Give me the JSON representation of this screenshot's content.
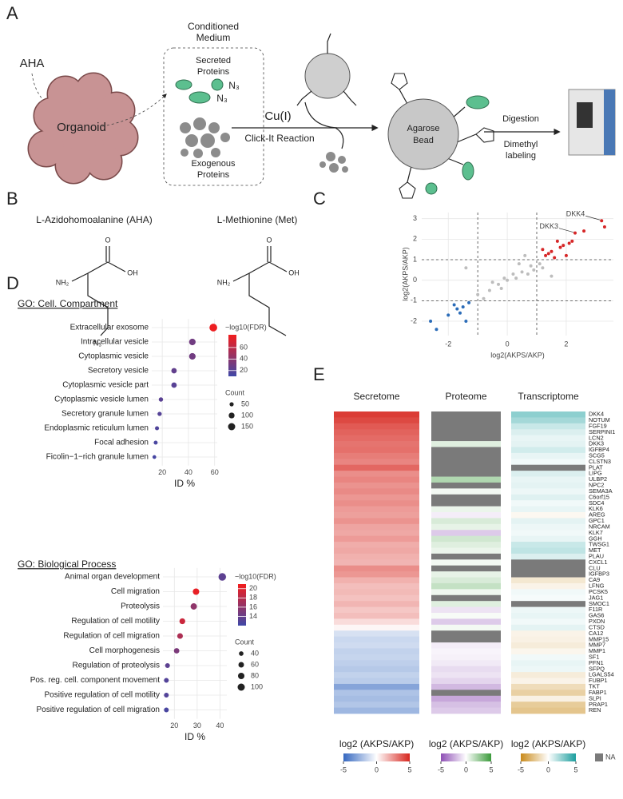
{
  "figure": {
    "panel_labels": [
      "A",
      "B",
      "C",
      "D",
      "E"
    ],
    "workflow": {
      "aha": "AHA",
      "organoid": "Organoid",
      "conditioned_medium": [
        "Conditioned",
        "Medium"
      ],
      "secreted_proteins": [
        "Secreted",
        "Proteins"
      ],
      "n3": [
        "N₃",
        "N₃"
      ],
      "exogenous_proteins": [
        "Exogenous",
        "Proteins"
      ],
      "catalyst": "Cu(I)",
      "reaction": "Click-It Reaction",
      "bead": [
        "Agarose",
        "Bead"
      ],
      "digestion": "Digestion",
      "labeling": [
        "Dimethyl",
        "labeling"
      ]
    },
    "structures": {
      "aha": {
        "name": "L-Azidohomoalanine (AHA)",
        "amine": "NH₂",
        "hydroxyl": "OH",
        "oxygen": "O",
        "azide": "N₃"
      },
      "met": {
        "name": "L-Methionine (Met)",
        "amine": "NH₂",
        "hydroxyl": "OH",
        "oxygen": "O"
      }
    }
  },
  "chart_data": [
    {
      "type": "scatter",
      "xlabel": "log2(AKPS/AKP)",
      "ylabel": "log2(AKPS/AKP)",
      "xlim": [
        -2.9,
        3.6
      ],
      "ylim": [
        -2.7,
        3.3
      ],
      "xticks": [
        -2,
        0,
        2
      ],
      "yticks": [
        -2,
        -1,
        0,
        1,
        2,
        3
      ],
      "grid": true,
      "vlines": [
        -1,
        1
      ],
      "hlines": [
        -1,
        1
      ],
      "series": [
        {
          "color": "#d62728",
          "x": [
            3.2,
            2.3,
            3.3,
            2.6,
            2.1,
            1.9,
            1.8,
            2.2,
            1.5,
            1.3,
            1.6,
            1.2,
            1.4,
            2.0,
            1.7
          ],
          "values": [
            2.9,
            2.3,
            2.6,
            2.4,
            1.8,
            1.7,
            1.6,
            1.9,
            1.4,
            1.2,
            1.1,
            1.5,
            1.3,
            1.2,
            1.9
          ]
        },
        {
          "color": "#bdbdbd",
          "x": [
            0.8,
            0.5,
            0,
            -0.3,
            0.2,
            -0.6,
            0.6,
            1.1,
            -1.0,
            0.9,
            0.3,
            -0.2,
            1.5,
            -0.8,
            0.4,
            -1.4,
            -0.1,
            0.7,
            1.2,
            -0.5
          ],
          "values": [
            0.7,
            0.4,
            0,
            -0.2,
            0.3,
            -0.5,
            1.2,
            0.8,
            -0.7,
            0.5,
            0.1,
            -0.4,
            0.2,
            -0.9,
            0.8,
            0.6,
            0.1,
            0.3,
            0.6,
            -0.1
          ]
        },
        {
          "color": "#2b6cb8",
          "x": [
            -1.3,
            -1.5,
            -1.6,
            -1.8,
            -2.0,
            -1.4,
            -2.4,
            -2.6,
            -1.7
          ],
          "values": [
            -1.1,
            -1.3,
            -1.6,
            -1.2,
            -1.7,
            -2.0,
            -2.4,
            -2.0,
            -1.4
          ]
        }
      ],
      "annotations": [
        {
          "text": "DKK3",
          "x": 2.3,
          "y": 2.3
        },
        {
          "text": "DKK4",
          "x": 3.2,
          "y": 2.9
        }
      ]
    },
    {
      "type": "dot",
      "title": "GO: Cell. Compartment",
      "categories": [
        "Extracellular exosome",
        "Intracellular vesicle",
        "Cytoplasmic vesicle",
        "Secretory vesicle",
        "Cytoplasmic vesicle part",
        "Cytoplasmic vesicle lumen",
        "Secretory granule lumen",
        "Endoplasmic reticulum lumen",
        "Focal adhesion",
        "Ficolin−1−rich granule lumen"
      ],
      "values": [
        59,
        43,
        43,
        29,
        29,
        19,
        18,
        16,
        15,
        14
      ],
      "fdr": [
        80,
        30,
        30,
        24,
        20,
        21,
        19,
        17,
        14,
        13
      ],
      "count": [
        175,
        125,
        125,
        85,
        85,
        55,
        52,
        48,
        45,
        40
      ],
      "xlabel": "ID %",
      "xlim": [
        12,
        62
      ],
      "xticks": [
        20,
        40,
        60
      ],
      "grid": true,
      "color_title": "−log10(FDR)",
      "clim": [
        10,
        82
      ],
      "cticks": [
        20,
        40,
        60
      ],
      "colors": [
        "#3f48a8",
        "#f21d1d"
      ],
      "size_title": "Count",
      "size_ticks": [
        50,
        100,
        150
      ]
    },
    {
      "type": "dot",
      "title": "GO: Biological Process",
      "categories": [
        "Animal organ development",
        "Cell migration",
        "Proteolysis",
        "Regulation of cell motility",
        "Regulation of cell migration",
        "Cell morphogenesis",
        "Regulation of proteolysis",
        "Pos. reg. cell. component movement",
        "Positive regulation of cell motility",
        "Positive regulation of cell migration"
      ],
      "values": [
        41,
        29.5,
        28.5,
        23.5,
        22.5,
        21,
        17,
        16.5,
        16.5,
        16.5
      ],
      "fdr": [
        13.5,
        20.5,
        16,
        19,
        17.5,
        15,
        13.5,
        13,
        13,
        12.5
      ],
      "count": [
        110,
        80,
        78,
        65,
        62,
        58,
        45,
        44,
        44,
        44
      ],
      "xlabel": "ID %",
      "xlim": [
        15,
        43
      ],
      "xticks": [
        20,
        30,
        40
      ],
      "grid": true,
      "color_title": "−log10(FDR)",
      "clim": [
        12,
        21
      ],
      "cticks": [
        14,
        16,
        18,
        20
      ],
      "colors": [
        "#3f48a8",
        "#f21d1d"
      ],
      "size_title": "Count",
      "size_ticks": [
        40,
        60,
        80,
        100
      ]
    },
    {
      "type": "heatmap",
      "rows": [
        "DKK4",
        "NOTUM",
        "FGF19",
        "SERPINI1",
        "LCN2",
        "DKK3",
        "IGFBP4",
        "SCG5",
        "CLSTN3",
        "PLAT",
        "LIPG",
        "ULBP2",
        "NPC2",
        "SEMA3A",
        "C6orf15",
        "SDC4",
        "KLK6",
        "AREG",
        "GPC1",
        "NRCAM",
        "KLK7",
        "GGH",
        "TWSG1",
        "MET",
        "PLAU",
        "CXCL1",
        "CLU",
        "IGFBP3",
        "CA9",
        "LFNG",
        "PCSK5",
        "JAG1",
        "SMOC1",
        "F11R",
        "GAS6",
        "PXDN",
        "CTSD",
        "CA12",
        "MMP15",
        "MMP7",
        "MMP1",
        "SF1",
        "PFN1",
        "SFPQ",
        "LGALS54",
        "FUBP1",
        "TKT",
        "FABP1",
        "SLPI",
        "PRAP1",
        "REN"
      ],
      "clim": [
        -5,
        5
      ],
      "na_label": "NA",
      "na_color": "#7a7a7a",
      "panels": [
        {
          "title": "Secretome",
          "colorbar_title": "log2 (AKPS/AKP)",
          "cticks": [
            -5,
            0,
            5
          ],
          "colors": [
            "#3568c0",
            "#ffffff",
            "#d7261e"
          ],
          "values": [
            4.5,
            4.2,
            3.8,
            3.6,
            3.4,
            3.2,
            3.3,
            3.0,
            2.8,
            3.5,
            2.6,
            2.8,
            2.5,
            2.7,
            2.4,
            2.6,
            2.3,
            2.2,
            2.5,
            2.1,
            2.0,
            2.3,
            1.9,
            2.0,
            1.8,
            1.7,
            2.6,
            2.4,
            1.8,
            1.5,
            1.6,
            1.4,
            1.7,
            1.3,
            1.5,
            0.8,
            0.2,
            -1.0,
            -1.3,
            -1.2,
            -1.5,
            -1.4,
            -1.6,
            -1.8,
            -1.5,
            -1.7,
            -3.0,
            -2.0,
            -2.2,
            -1.9,
            -2.4
          ]
        },
        {
          "title": "Proteome",
          "colorbar_title": "log2 (AKPS/AKP)",
          "cticks": [
            -5,
            0,
            5
          ],
          "colors": [
            "#8e4fb5",
            "#ffffff",
            "#3a9a3a"
          ],
          "values": [
            null,
            null,
            null,
            null,
            null,
            0.8,
            null,
            null,
            null,
            null,
            null,
            2.0,
            null,
            0.3,
            null,
            null,
            0.5,
            -0.5,
            1.0,
            0.6,
            -1.5,
            1.2,
            0.8,
            0.5,
            null,
            0.3,
            null,
            0.6,
            1.0,
            1.5,
            0.4,
            null,
            0.8,
            -0.8,
            0.2,
            -1.5,
            0.3,
            null,
            null,
            -0.5,
            -0.3,
            -0.4,
            -0.6,
            -1.0,
            -0.8,
            -1.2,
            -2.0,
            null,
            -2.5,
            -1.8,
            -1.5
          ]
        },
        {
          "title": "Transcriptome",
          "colorbar_title": "log2 (AKPS/AKP)",
          "cticks": [
            -5,
            0,
            5
          ],
          "colors": [
            "#c98a1a",
            "#ffffff",
            "#1b9e9e"
          ],
          "values": [
            2.5,
            2.0,
            1.2,
            0.8,
            0.5,
            0.6,
            1.0,
            0.5,
            0.3,
            null,
            0.8,
            0.5,
            0.6,
            0.4,
            0.7,
            0.3,
            0.5,
            -0.3,
            0.6,
            0.4,
            0.3,
            0.5,
            1.2,
            1.4,
            0.8,
            null,
            null,
            null,
            -1.0,
            -0.5,
            0.3,
            0.2,
            null,
            0.4,
            0.5,
            0.3,
            0.6,
            -0.5,
            -0.6,
            -0.8,
            -0.4,
            0.3,
            0.5,
            0.4,
            -0.8,
            -0.5,
            -1.5,
            -2.0,
            -0.6,
            -2.2,
            -2.5
          ]
        }
      ]
    }
  ]
}
